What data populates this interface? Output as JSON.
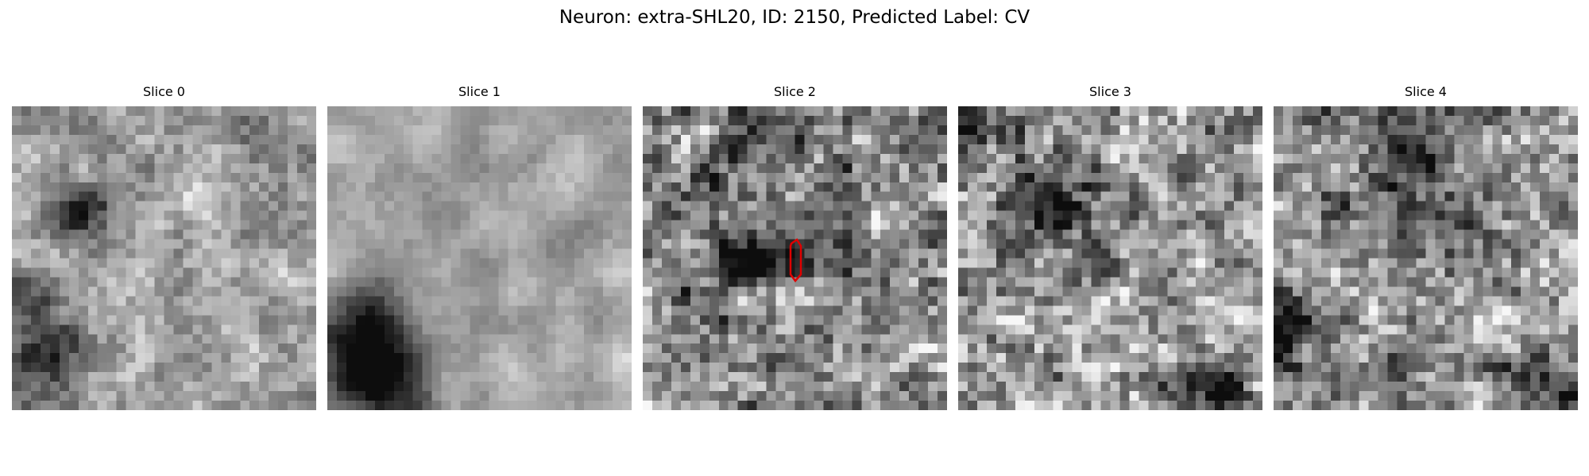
{
  "figure": {
    "title": "Neuron: extra-SHL20, ID: 2150, Predicted Label: CV"
  },
  "slices": [
    {
      "label": "Slice 0"
    },
    {
      "label": "Slice 1"
    },
    {
      "label": "Slice 2"
    },
    {
      "label": "Slice 3"
    },
    {
      "label": "Slice 4"
    }
  ],
  "colors": {
    "background": "#ffffff",
    "contour": "#e00000",
    "colormap": "gray"
  }
}
